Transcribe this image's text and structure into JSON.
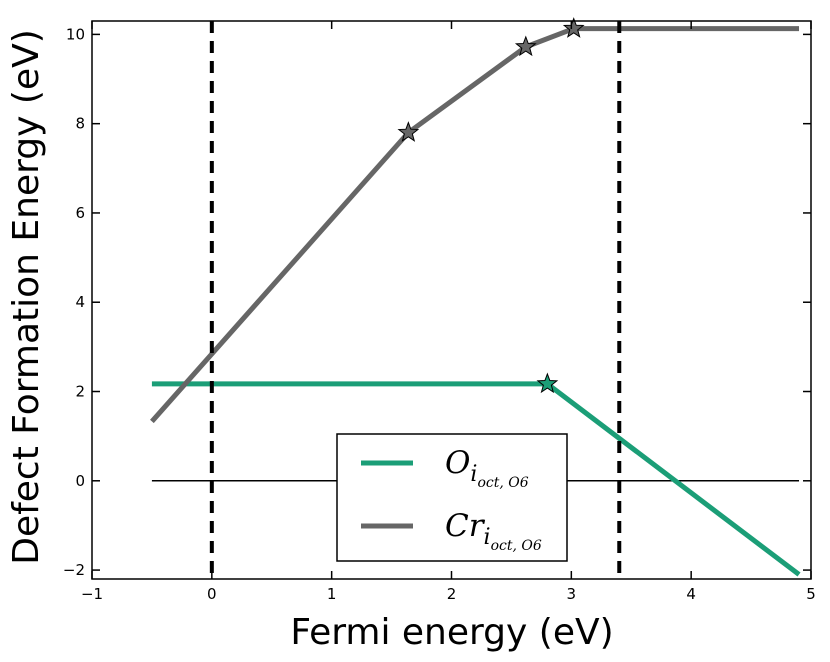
{
  "chart_data": {
    "type": "line",
    "xlabel": "Fermi energy (eV)",
    "ylabel": "Defect Formation Energy (eV)",
    "xlim": [
      -1,
      5
    ],
    "ylim": [
      -2.2,
      10.3
    ],
    "xticks": [
      -1,
      0,
      1,
      2,
      3,
      4,
      5
    ],
    "yticks": [
      -2,
      0,
      2,
      4,
      6,
      8,
      10
    ],
    "xtick_labels": [
      "−1",
      "0",
      "1",
      "2",
      "3",
      "4",
      "5"
    ],
    "ytick_labels": [
      "−2",
      "0",
      "2",
      "4",
      "6",
      "8",
      "10"
    ],
    "grid": false,
    "legend_position": "lower-center",
    "reference_lines": {
      "zero_line": {
        "y": 0,
        "x": [
          -0.5,
          4.9
        ],
        "color": "#000000"
      },
      "vertical_dashed": [
        0,
        3.4
      ]
    },
    "series": [
      {
        "base": "O",
        "subscript": "i",
        "sub_subscript": "oct, O6",
        "color": "#1b9e77",
        "x": [
          -0.5,
          2.8,
          4.9
        ],
        "y": [
          2.17,
          2.17,
          -2.1
        ],
        "transition_points": [
          {
            "x": 2.8,
            "y": 2.17
          }
        ]
      },
      {
        "base": "Cr",
        "subscript": "i",
        "sub_subscript": "oct, O6",
        "color": "#666666",
        "x": [
          -0.5,
          1.64,
          2.62,
          3.02,
          4.9
        ],
        "y": [
          1.33,
          7.8,
          9.72,
          10.13,
          10.13
        ],
        "transition_points": [
          {
            "x": 1.64,
            "y": 7.8
          },
          {
            "x": 2.62,
            "y": 9.72
          },
          {
            "x": 3.02,
            "y": 10.13
          }
        ]
      }
    ]
  }
}
